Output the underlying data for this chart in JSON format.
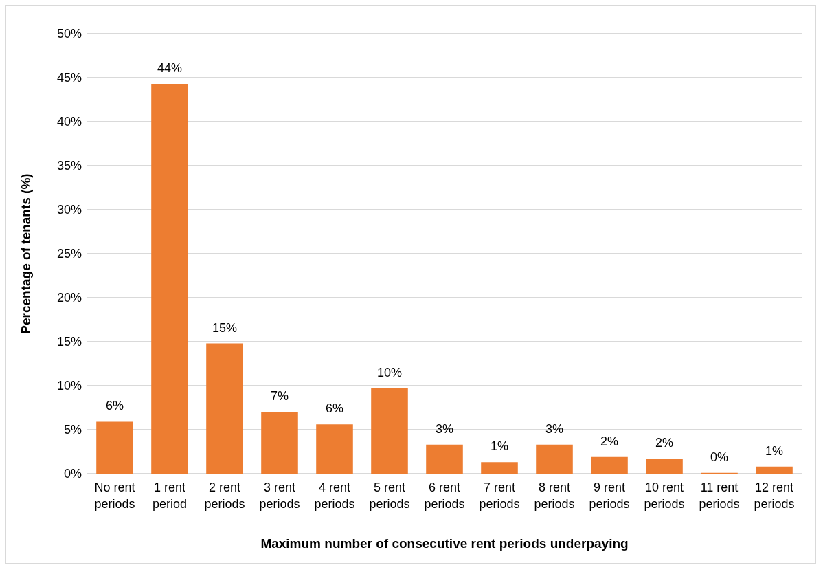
{
  "chart_data": {
    "type": "bar",
    "xlabel": "Maximum number of consecutive rent periods underpaying",
    "ylabel": "Percentage of tenants (%)",
    "categories": [
      "No rent periods",
      "1 rent period",
      "2 rent periods",
      "3 rent periods",
      "4 rent periods",
      "5 rent periods",
      "6 rent periods",
      "7 rent periods",
      "8 rent periods",
      "9 rent periods",
      "10 rent periods",
      "11 rent periods",
      "12 rent periods"
    ],
    "values": [
      5.9,
      44.3,
      14.8,
      7.0,
      5.6,
      9.7,
      3.3,
      1.3,
      3.3,
      1.9,
      1.7,
      0.1,
      0.8
    ],
    "value_labels": [
      "6%",
      "44%",
      "15%",
      "7%",
      "6%",
      "10%",
      "3%",
      "1%",
      "3%",
      "2%",
      "2%",
      "0%",
      "1%"
    ],
    "color": "#ed7d31",
    "ylim": [
      0,
      50
    ],
    "yticks": [
      {
        "value": 0,
        "label": "0%"
      },
      {
        "value": 5,
        "label": "5%"
      },
      {
        "value": 10,
        "label": "10%"
      },
      {
        "value": 15,
        "label": "15%"
      },
      {
        "value": 20,
        "label": "20%"
      },
      {
        "value": 25,
        "label": "25%"
      },
      {
        "value": 30,
        "label": "30%"
      },
      {
        "value": 35,
        "label": "35%"
      },
      {
        "value": 40,
        "label": "40%"
      },
      {
        "value": 45,
        "label": "45%"
      },
      {
        "value": 50,
        "label": "50%"
      }
    ],
    "grid": "y"
  }
}
